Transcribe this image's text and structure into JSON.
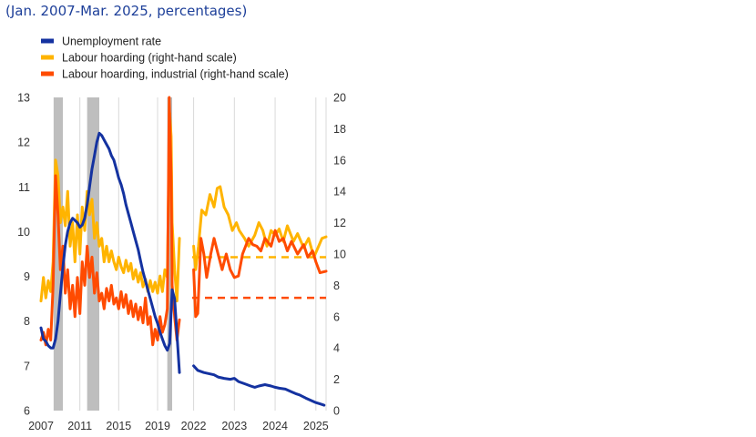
{
  "subtitle": "(Jan. 2007-Mar. 2025, percentages)",
  "chart_data": {
    "type": "line",
    "colors": {
      "unemployment": "#1432a0",
      "hoarding": "#ffb400",
      "industrial": "#ff4b00",
      "recession": "#bebebe",
      "grid": "#d9d9d9"
    },
    "legend": [
      {
        "key": "unemployment",
        "label": "Unemployment rate"
      },
      {
        "key": "hoarding",
        "label": "Labour hoarding (right-hand scale)"
      },
      {
        "key": "industrial",
        "label": "Labour hoarding, industrial (right-hand scale)"
      }
    ],
    "left_axis": {
      "min": 6,
      "max": 13,
      "ticks": [
        "13",
        "12",
        "11",
        "10",
        "9",
        "8",
        "7",
        "6"
      ]
    },
    "right_axis": {
      "min": 0,
      "max": 20,
      "ticks": [
        "20",
        "18",
        "16",
        "14",
        "12",
        "10",
        "8",
        "6",
        "4",
        "2",
        "0"
      ]
    },
    "panel1": {
      "x_range": [
        2007,
        2021.25
      ],
      "x_ticks": [
        "2007",
        "2011",
        "2015",
        "2019"
      ],
      "recession_periods": [
        [
          2008.3,
          2009.25
        ],
        [
          2011.75,
          2013.0
        ],
        [
          2020.0,
          2020.5
        ]
      ],
      "unemployment": [
        [
          2007.0,
          7.85
        ],
        [
          2007.25,
          7.6
        ],
        [
          2007.5,
          7.55
        ],
        [
          2007.75,
          7.45
        ],
        [
          2008.0,
          7.4
        ],
        [
          2008.25,
          7.4
        ],
        [
          2008.5,
          7.6
        ],
        [
          2008.75,
          8.0
        ],
        [
          2009.0,
          8.6
        ],
        [
          2009.25,
          9.2
        ],
        [
          2009.5,
          9.7
        ],
        [
          2009.75,
          10.0
        ],
        [
          2010.0,
          10.2
        ],
        [
          2010.25,
          10.3
        ],
        [
          2010.5,
          10.25
        ],
        [
          2010.75,
          10.2
        ],
        [
          2011.0,
          10.1
        ],
        [
          2011.25,
          10.15
        ],
        [
          2011.5,
          10.3
        ],
        [
          2011.75,
          10.6
        ],
        [
          2012.0,
          11.0
        ],
        [
          2012.25,
          11.4
        ],
        [
          2012.5,
          11.7
        ],
        [
          2012.75,
          12.0
        ],
        [
          2013.0,
          12.2
        ],
        [
          2013.25,
          12.15
        ],
        [
          2013.5,
          12.05
        ],
        [
          2013.75,
          11.95
        ],
        [
          2014.0,
          11.85
        ],
        [
          2014.25,
          11.7
        ],
        [
          2014.5,
          11.6
        ],
        [
          2014.75,
          11.4
        ],
        [
          2015.0,
          11.2
        ],
        [
          2015.25,
          11.05
        ],
        [
          2015.5,
          10.85
        ],
        [
          2015.75,
          10.6
        ],
        [
          2016.0,
          10.4
        ],
        [
          2016.25,
          10.2
        ],
        [
          2016.5,
          10.0
        ],
        [
          2016.75,
          9.8
        ],
        [
          2017.0,
          9.6
        ],
        [
          2017.25,
          9.35
        ],
        [
          2017.5,
          9.1
        ],
        [
          2017.75,
          8.9
        ],
        [
          2018.0,
          8.7
        ],
        [
          2018.25,
          8.5
        ],
        [
          2018.5,
          8.3
        ],
        [
          2018.75,
          8.1
        ],
        [
          2019.0,
          7.95
        ],
        [
          2019.25,
          7.75
        ],
        [
          2019.5,
          7.6
        ],
        [
          2019.75,
          7.45
        ],
        [
          2020.0,
          7.35
        ],
        [
          2020.25,
          7.5
        ],
        [
          2020.4,
          8.2
        ],
        [
          2020.5,
          8.7
        ],
        [
          2020.75,
          8.5
        ],
        [
          2021.0,
          7.7
        ],
        [
          2021.25,
          6.85
        ]
      ],
      "hoarding": [
        [
          2007.0,
          7.0
        ],
        [
          2007.25,
          8.5
        ],
        [
          2007.5,
          7.2
        ],
        [
          2007.75,
          8.3
        ],
        [
          2008.0,
          7.6
        ],
        [
          2008.25,
          9.5
        ],
        [
          2008.5,
          16.0
        ],
        [
          2008.75,
          15.0
        ],
        [
          2009.0,
          12.0
        ],
        [
          2009.25,
          13.0
        ],
        [
          2009.5,
          11.8
        ],
        [
          2009.75,
          14.0
        ],
        [
          2010.0,
          10.5
        ],
        [
          2010.25,
          12.0
        ],
        [
          2010.5,
          9.5
        ],
        [
          2010.75,
          12.5
        ],
        [
          2011.0,
          10.0
        ],
        [
          2011.25,
          13.0
        ],
        [
          2011.5,
          11.5
        ],
        [
          2011.75,
          14.0
        ],
        [
          2012.0,
          12.5
        ],
        [
          2012.25,
          13.5
        ],
        [
          2012.5,
          11.0
        ],
        [
          2012.75,
          12.0
        ],
        [
          2013.0,
          10.5
        ],
        [
          2013.25,
          11.0
        ],
        [
          2013.5,
          9.5
        ],
        [
          2013.75,
          10.5
        ],
        [
          2014.0,
          9.5
        ],
        [
          2014.25,
          10.2
        ],
        [
          2014.5,
          9.5
        ],
        [
          2014.75,
          9.0
        ],
        [
          2015.0,
          9.8
        ],
        [
          2015.25,
          9.2
        ],
        [
          2015.5,
          8.8
        ],
        [
          2015.75,
          9.6
        ],
        [
          2016.0,
          8.9
        ],
        [
          2016.25,
          9.4
        ],
        [
          2016.5,
          8.4
        ],
        [
          2016.75,
          9.0
        ],
        [
          2017.0,
          8.2
        ],
        [
          2017.25,
          8.8
        ],
        [
          2017.5,
          7.9
        ],
        [
          2017.75,
          8.4
        ],
        [
          2018.0,
          7.6
        ],
        [
          2018.25,
          8.3
        ],
        [
          2018.5,
          7.6
        ],
        [
          2018.75,
          8.2
        ],
        [
          2019.0,
          7.5
        ],
        [
          2019.25,
          8.6
        ],
        [
          2019.5,
          7.6
        ],
        [
          2019.75,
          9.0
        ],
        [
          2020.0,
          8.5
        ],
        [
          2020.25,
          19.0
        ],
        [
          2020.4,
          17.5
        ],
        [
          2020.5,
          12.0
        ],
        [
          2020.75,
          9.0
        ],
        [
          2021.0,
          7.0
        ],
        [
          2021.25,
          11.0
        ]
      ],
      "industrial": [
        [
          2007.0,
          4.5
        ],
        [
          2007.25,
          5.0
        ],
        [
          2007.5,
          4.2
        ],
        [
          2007.75,
          5.2
        ],
        [
          2008.0,
          4.5
        ],
        [
          2008.25,
          8.0
        ],
        [
          2008.5,
          15.0
        ],
        [
          2008.75,
          12.5
        ],
        [
          2009.0,
          9.0
        ],
        [
          2009.25,
          10.5
        ],
        [
          2009.5,
          7.5
        ],
        [
          2009.75,
          9.0
        ],
        [
          2010.0,
          6.5
        ],
        [
          2010.25,
          8.0
        ],
        [
          2010.5,
          6.0
        ],
        [
          2010.75,
          8.5
        ],
        [
          2011.0,
          6.2
        ],
        [
          2011.25,
          9.5
        ],
        [
          2011.5,
          8.0
        ],
        [
          2011.75,
          10.5
        ],
        [
          2012.0,
          8.5
        ],
        [
          2012.25,
          9.8
        ],
        [
          2012.5,
          7.5
        ],
        [
          2012.75,
          8.8
        ],
        [
          2013.0,
          7.0
        ],
        [
          2013.25,
          7.5
        ],
        [
          2013.5,
          6.5
        ],
        [
          2013.75,
          7.8
        ],
        [
          2014.0,
          7.0
        ],
        [
          2014.25,
          8.0
        ],
        [
          2014.5,
          6.8
        ],
        [
          2014.75,
          7.2
        ],
        [
          2015.0,
          6.5
        ],
        [
          2015.25,
          7.6
        ],
        [
          2015.5,
          6.6
        ],
        [
          2015.75,
          7.4
        ],
        [
          2016.0,
          6.2
        ],
        [
          2016.25,
          7.0
        ],
        [
          2016.5,
          6.0
        ],
        [
          2016.75,
          6.8
        ],
        [
          2017.0,
          5.8
        ],
        [
          2017.25,
          6.6
        ],
        [
          2017.5,
          5.6
        ],
        [
          2017.75,
          7.2
        ],
        [
          2018.0,
          5.5
        ],
        [
          2018.25,
          6.0
        ],
        [
          2018.5,
          4.2
        ],
        [
          2018.75,
          5.2
        ],
        [
          2019.0,
          4.5
        ],
        [
          2019.25,
          6.0
        ],
        [
          2019.5,
          5.0
        ],
        [
          2019.75,
          5.5
        ],
        [
          2020.0,
          6.5
        ],
        [
          2020.2,
          20.0
        ],
        [
          2020.4,
          15.0
        ],
        [
          2020.5,
          8.0
        ],
        [
          2020.75,
          6.0
        ],
        [
          2021.0,
          4.5
        ],
        [
          2021.25,
          5.8
        ]
      ]
    },
    "panel2": {
      "x_range": [
        2021.92,
        2025.25
      ],
      "x_ticks": [
        "2022",
        "2023",
        "2024",
        "2025"
      ],
      "unemployment": [
        [
          2022.0,
          7.0
        ],
        [
          2022.1,
          6.9
        ],
        [
          2022.25,
          6.85
        ],
        [
          2022.4,
          6.82
        ],
        [
          2022.5,
          6.8
        ],
        [
          2022.6,
          6.75
        ],
        [
          2022.75,
          6.72
        ],
        [
          2022.9,
          6.7
        ],
        [
          2023.0,
          6.72
        ],
        [
          2023.1,
          6.65
        ],
        [
          2023.25,
          6.6
        ],
        [
          2023.4,
          6.55
        ],
        [
          2023.5,
          6.52
        ],
        [
          2023.6,
          6.55
        ],
        [
          2023.75,
          6.58
        ],
        [
          2023.9,
          6.55
        ],
        [
          2024.0,
          6.52
        ],
        [
          2024.1,
          6.5
        ],
        [
          2024.25,
          6.48
        ],
        [
          2024.4,
          6.42
        ],
        [
          2024.5,
          6.38
        ],
        [
          2024.6,
          6.35
        ],
        [
          2024.75,
          6.28
        ],
        [
          2024.9,
          6.22
        ],
        [
          2025.0,
          6.18
        ],
        [
          2025.1,
          6.15
        ],
        [
          2025.2,
          6.12
        ]
      ],
      "hoarding": [
        [
          2022.0,
          10.5
        ],
        [
          2022.05,
          9.0
        ],
        [
          2022.12,
          10.5
        ],
        [
          2022.2,
          12.8
        ],
        [
          2022.3,
          12.5
        ],
        [
          2022.4,
          13.8
        ],
        [
          2022.5,
          13.0
        ],
        [
          2022.58,
          14.2
        ],
        [
          2022.65,
          14.3
        ],
        [
          2022.75,
          13.0
        ],
        [
          2022.85,
          12.5
        ],
        [
          2022.95,
          11.5
        ],
        [
          2023.05,
          12.0
        ],
        [
          2023.12,
          11.5
        ],
        [
          2023.25,
          11.0
        ],
        [
          2023.35,
          10.5
        ],
        [
          2023.5,
          11.2
        ],
        [
          2023.6,
          12.0
        ],
        [
          2023.7,
          11.5
        ],
        [
          2023.8,
          10.5
        ],
        [
          2023.9,
          11.5
        ],
        [
          2024.0,
          11.2
        ],
        [
          2024.1,
          11.6
        ],
        [
          2024.2,
          10.8
        ],
        [
          2024.3,
          11.8
        ],
        [
          2024.45,
          10.8
        ],
        [
          2024.55,
          11.3
        ],
        [
          2024.7,
          10.4
        ],
        [
          2024.82,
          11.0
        ],
        [
          2024.95,
          9.8
        ],
        [
          2025.05,
          10.4
        ],
        [
          2025.15,
          11.0
        ],
        [
          2025.25,
          11.1
        ]
      ],
      "industrial": [
        [
          2022.0,
          9.0
        ],
        [
          2022.05,
          6.0
        ],
        [
          2022.1,
          6.2
        ],
        [
          2022.18,
          11.0
        ],
        [
          2022.25,
          10.0
        ],
        [
          2022.32,
          8.5
        ],
        [
          2022.42,
          10.0
        ],
        [
          2022.5,
          11.0
        ],
        [
          2022.6,
          10.0
        ],
        [
          2022.7,
          9.0
        ],
        [
          2022.8,
          10.0
        ],
        [
          2022.9,
          9.0
        ],
        [
          2023.0,
          8.5
        ],
        [
          2023.1,
          8.6
        ],
        [
          2023.2,
          10.0
        ],
        [
          2023.35,
          11.0
        ],
        [
          2023.45,
          10.6
        ],
        [
          2023.55,
          10.5
        ],
        [
          2023.65,
          10.2
        ],
        [
          2023.75,
          11.0
        ],
        [
          2023.9,
          10.5
        ],
        [
          2024.0,
          11.5
        ],
        [
          2024.1,
          10.8
        ],
        [
          2024.2,
          11.0
        ],
        [
          2024.3,
          10.2
        ],
        [
          2024.4,
          10.8
        ],
        [
          2024.55,
          10.0
        ],
        [
          2024.7,
          10.6
        ],
        [
          2024.8,
          9.8
        ],
        [
          2024.92,
          10.2
        ],
        [
          2025.0,
          9.5
        ],
        [
          2025.1,
          8.8
        ],
        [
          2025.25,
          8.9
        ]
      ],
      "hoarding_average": 9.8,
      "industrial_average": 7.2
    }
  }
}
